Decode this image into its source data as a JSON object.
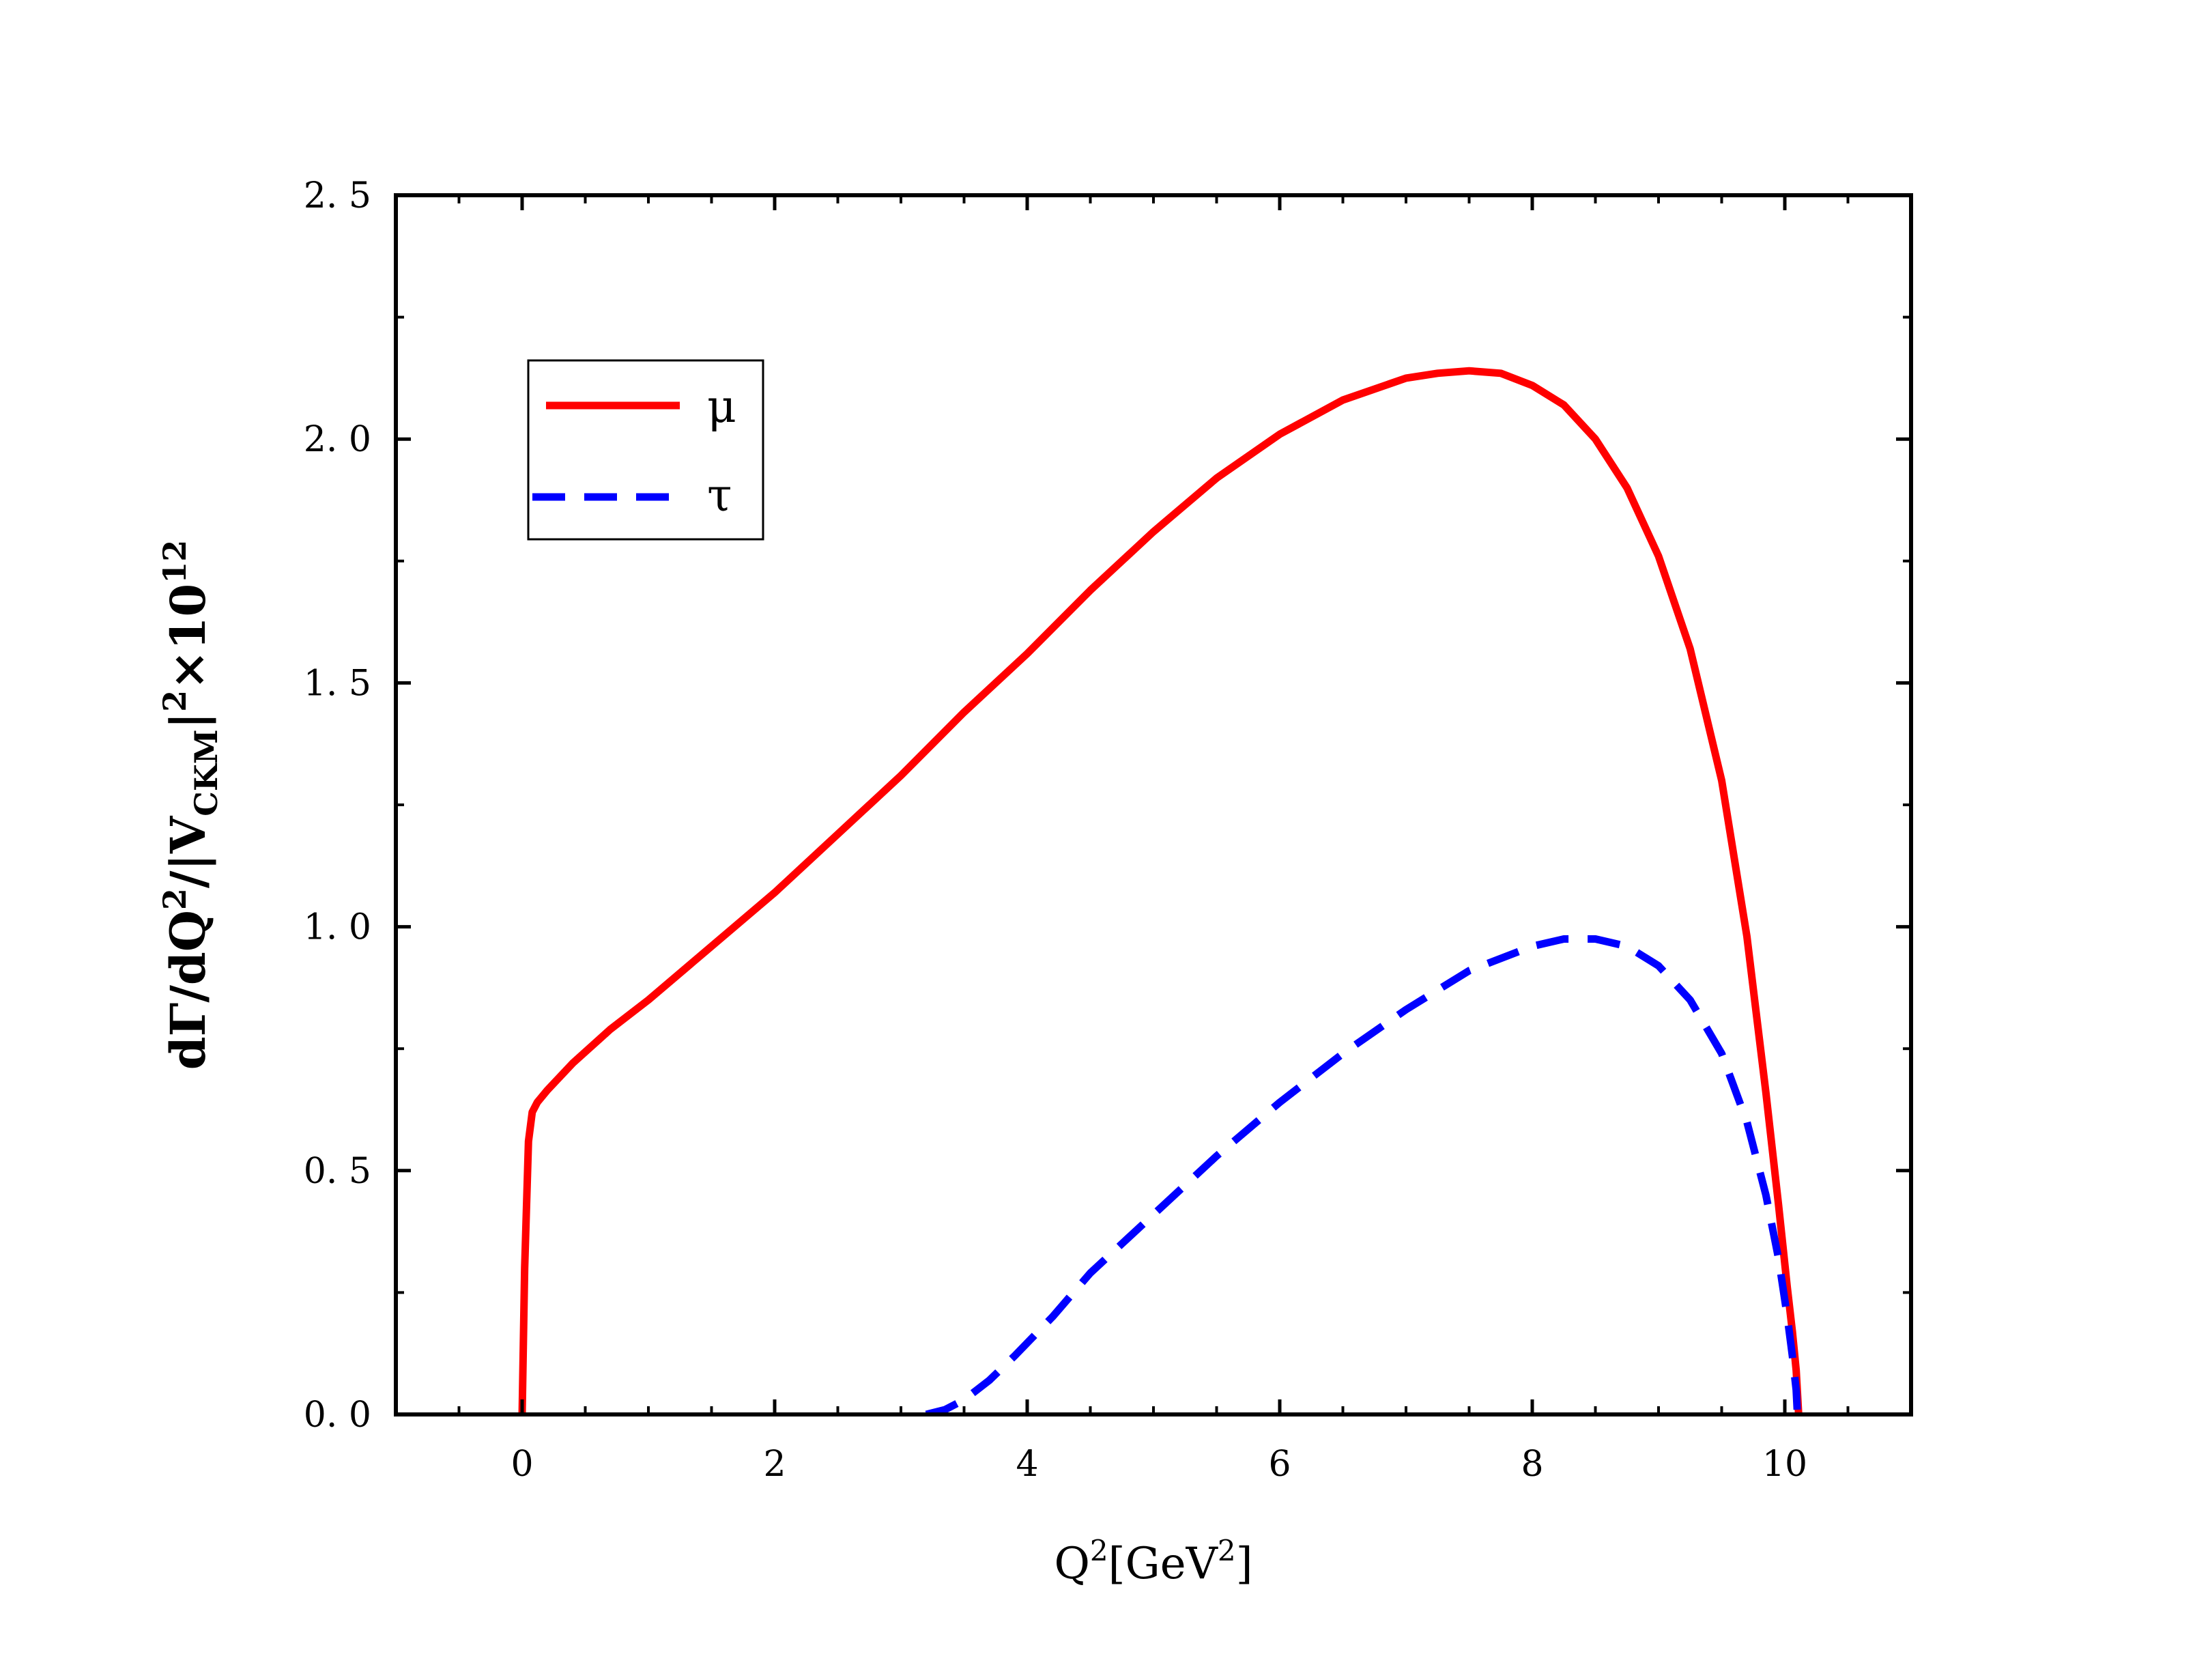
{
  "chart_data": {
    "type": "line",
    "title": "",
    "xlabel": {
      "base": "Q",
      "sup": "2",
      "bracket_open": "[",
      "unit": "GeV",
      "unit_sup": "2",
      "bracket_close": "]"
    },
    "ylabel": {
      "prefix": "dΓ/dQ",
      "sup1": "2",
      "mid": "/|V",
      "sub": "CKM",
      "bar": "|",
      "sup2": "2",
      "times": "×10",
      "sup3": "12"
    },
    "xlim": [
      -1,
      11
    ],
    "ylim": [
      0,
      2.5
    ],
    "xticks": [
      0,
      2,
      4,
      6,
      8,
      10
    ],
    "xtick_labels": [
      "0",
      "2",
      "4",
      "6",
      "8",
      "10"
    ],
    "yticks": [
      0,
      0.5,
      1.0,
      1.5,
      2.0,
      2.5
    ],
    "ytick_labels": [
      "0. 0",
      "0. 5",
      "1. 0",
      "1. 5",
      "2. 0",
      "2. 5"
    ],
    "grid": false,
    "legend_position": "top-left",
    "series": [
      {
        "name": "μ",
        "color": "#ff0000",
        "style": "solid",
        "x": [
          0.0,
          0.02,
          0.05,
          0.08,
          0.12,
          0.2,
          0.4,
          0.7,
          1.0,
          1.5,
          2.0,
          2.5,
          3.0,
          3.5,
          4.0,
          4.5,
          5.0,
          5.5,
          6.0,
          6.5,
          7.0,
          7.25,
          7.5,
          7.75,
          8.0,
          8.25,
          8.5,
          8.75,
          9.0,
          9.25,
          9.5,
          9.7,
          9.85,
          9.95,
          10.02,
          10.06,
          10.09,
          10.11
        ],
        "y": [
          0.0,
          0.3,
          0.56,
          0.62,
          0.64,
          0.665,
          0.72,
          0.79,
          0.85,
          0.96,
          1.07,
          1.19,
          1.31,
          1.44,
          1.56,
          1.69,
          1.81,
          1.92,
          2.01,
          2.08,
          2.125,
          2.135,
          2.14,
          2.135,
          2.11,
          2.07,
          2.0,
          1.9,
          1.76,
          1.57,
          1.3,
          0.98,
          0.66,
          0.43,
          0.26,
          0.17,
          0.09,
          0.0
        ]
      },
      {
        "name": "τ",
        "color": "#0000ff",
        "style": "dashed",
        "x": [
          3.2,
          3.35,
          3.5,
          3.7,
          3.9,
          4.2,
          4.5,
          5.0,
          5.5,
          6.0,
          6.5,
          7.0,
          7.5,
          8.0,
          8.25,
          8.5,
          8.75,
          9.0,
          9.25,
          9.5,
          9.7,
          9.85,
          9.95,
          10.02,
          10.06,
          10.09,
          10.1
        ],
        "y": [
          0.0,
          0.01,
          0.03,
          0.07,
          0.12,
          0.2,
          0.29,
          0.41,
          0.53,
          0.64,
          0.74,
          0.83,
          0.91,
          0.96,
          0.975,
          0.975,
          0.96,
          0.92,
          0.85,
          0.74,
          0.6,
          0.45,
          0.32,
          0.2,
          0.12,
          0.05,
          0.0
        ]
      }
    ]
  }
}
